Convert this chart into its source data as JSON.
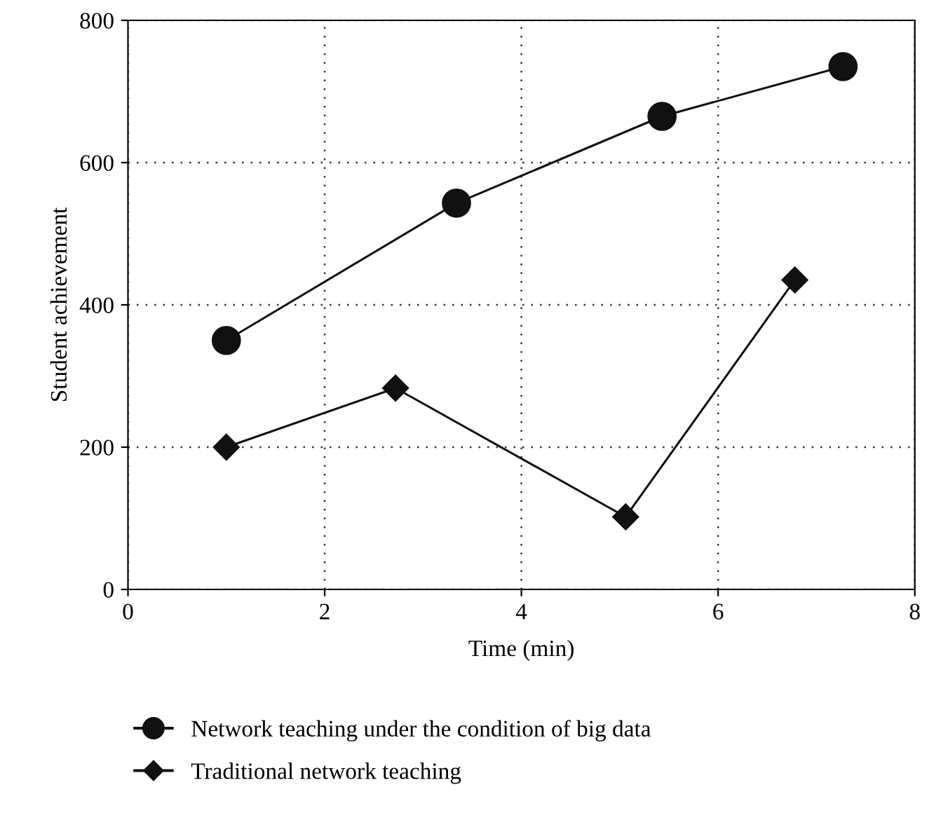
{
  "chart_data": {
    "type": "line",
    "xlabel": "Time (min)",
    "ylabel": "Student achievement",
    "xlim": [
      0,
      8
    ],
    "xticks": [
      0,
      2,
      4,
      6,
      8
    ],
    "ylim": [
      0,
      800
    ],
    "yticks": [
      0,
      200,
      400,
      600,
      800
    ],
    "grid": true,
    "legend": "bottom",
    "line_style": "solid",
    "series": [
      {
        "name": "Network teaching under the condition of big data",
        "color": "#111111",
        "marker": "circle",
        "x": [
          1.0,
          3.34,
          5.43,
          7.27
        ],
        "values": [
          350,
          543,
          665,
          735
        ]
      },
      {
        "name": "Traditional network teaching",
        "color": "#111111",
        "marker": "diamond",
        "x": [
          1.0,
          2.72,
          5.06,
          6.78
        ],
        "values": [
          200,
          283,
          102,
          435
        ]
      }
    ]
  }
}
